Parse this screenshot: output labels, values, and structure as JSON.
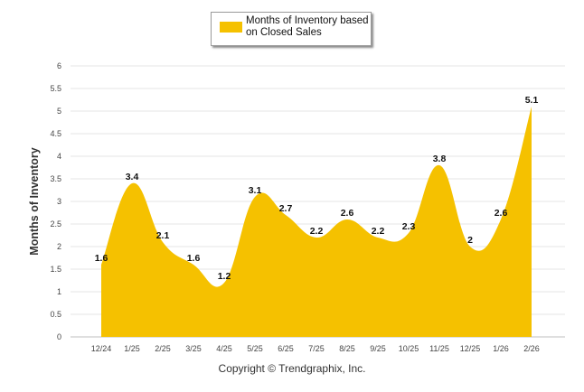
{
  "chart_data": {
    "type": "area",
    "categories": [
      "12/24",
      "1/25",
      "2/25",
      "3/25",
      "4/25",
      "5/25",
      "6/25",
      "7/25",
      "8/25",
      "9/25",
      "10/25",
      "11/25",
      "12/25",
      "1/26",
      "2/26"
    ],
    "series": [
      {
        "name": "Months of Inventory based on Closed Sales",
        "values": [
          1.6,
          3.4,
          2.1,
          1.6,
          1.2,
          3.1,
          2.7,
          2.2,
          2.6,
          2.2,
          2.3,
          3.8,
          2,
          2.6,
          5.1
        ]
      }
    ],
    "data_labels": [
      "1.6",
      "3.4",
      "2.1",
      "1.6",
      "1.2",
      "3.1",
      "2.7",
      "2.2",
      "2.6",
      "2.2",
      "2.3",
      "3.8",
      "2",
      "2.6",
      "5.1"
    ],
    "yticks": [
      "0",
      "0.5",
      "1",
      "1.5",
      "2",
      "2.5",
      "3",
      "3.5",
      "4",
      "4.5",
      "5",
      "5.5",
      "6"
    ],
    "ylim": [
      0,
      6
    ],
    "ylabel": "Months of Inventory",
    "xlabel": "",
    "grid": true,
    "legend_position": "top-center",
    "color": "#f5c100"
  },
  "legend": {
    "label": "Months of Inventory based on Closed Sales"
  },
  "footer": {
    "copyright": "Copyright © Trendgraphix, Inc."
  }
}
